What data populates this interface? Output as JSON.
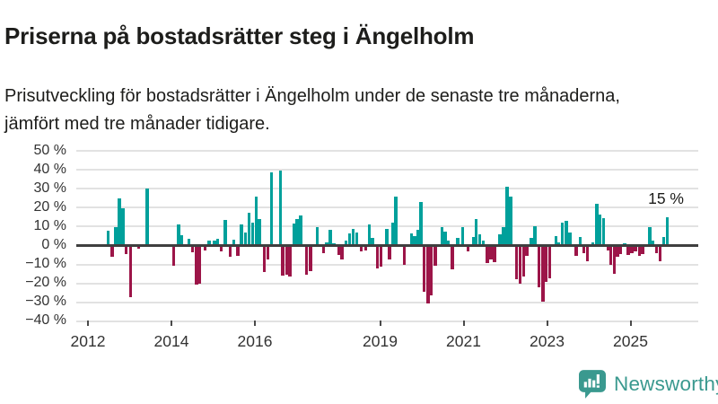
{
  "title": "Priserna på bostadsrätter steg i Ängelholm",
  "subtitle": "Prisutveckling för bostadsrätter i Ängelholm under de senaste tre månaderna, jämfört med tre månader tidigare.",
  "annotation": {
    "label": "15 %"
  },
  "branding": {
    "name": "Newsworthy",
    "icon": "newsworthy-bubble-chart-icon"
  },
  "colors": {
    "positive": "#00a09b",
    "negative": "#9c1548",
    "zero_line": "#3f3f3f",
    "gridline": "#e2e2e2",
    "axis_text": "#333333",
    "text": "#1d1d1b",
    "brand": "#3a998f"
  },
  "chart_data": {
    "type": "bar",
    "title": "Priserna på bostadsrätter steg i Ängelholm",
    "unit": "%",
    "grid": true,
    "ylim": [
      -40,
      50
    ],
    "y_ticks": [
      "50 %",
      "40 %",
      "30 %",
      "20 %",
      "10 %",
      "0 %",
      "−10 %",
      "−20 %",
      "−30 %",
      "−40 %"
    ],
    "y_tick_values": [
      50,
      40,
      30,
      20,
      10,
      0,
      -10,
      -20,
      -30,
      -40
    ],
    "x_ticks": [
      "2012",
      "2014",
      "2016",
      "2019",
      "2021",
      "2023",
      "2025"
    ],
    "x_tick_values": [
      2012,
      2014,
      2016,
      2019,
      2021,
      2023,
      2025
    ],
    "xlim": [
      2011.7,
      2026.6
    ],
    "last_value_label": "15 %",
    "points": [
      [
        2012.49,
        8
      ],
      [
        2012.58,
        -5.5
      ],
      [
        2012.67,
        9.5
      ],
      [
        2012.75,
        25
      ],
      [
        2012.84,
        19.5
      ],
      [
        2012.92,
        -4
      ],
      [
        2013.02,
        -27
      ],
      [
        2013.22,
        -1
      ],
      [
        2013.42,
        30
      ],
      [
        2014.05,
        -10
      ],
      [
        2014.17,
        11
      ],
      [
        2014.25,
        5.5
      ],
      [
        2014.42,
        3.5
      ],
      [
        2014.51,
        -3
      ],
      [
        2014.6,
        -20
      ],
      [
        2014.68,
        -19.5
      ],
      [
        2014.81,
        -2
      ],
      [
        2014.9,
        2.5
      ],
      [
        2015.03,
        2.5
      ],
      [
        2015.11,
        3.5
      ],
      [
        2015.2,
        -2.5
      ],
      [
        2015.29,
        13.5
      ],
      [
        2015.41,
        -5.5
      ],
      [
        2015.5,
        3
      ],
      [
        2015.59,
        -5
      ],
      [
        2015.68,
        11
      ],
      [
        2015.77,
        7
      ],
      [
        2015.86,
        17.5
      ],
      [
        2015.94,
        12
      ],
      [
        2016.03,
        26
      ],
      [
        2016.11,
        14
      ],
      [
        2016.22,
        -13.5
      ],
      [
        2016.31,
        -7
      ],
      [
        2016.4,
        38.5
      ],
      [
        2016.61,
        39.5
      ],
      [
        2016.67,
        -15.5
      ],
      [
        2016.76,
        -15
      ],
      [
        2016.84,
        -16
      ],
      [
        2016.93,
        11.5
      ],
      [
        2017.01,
        14
      ],
      [
        2017.1,
        16
      ],
      [
        2017.24,
        -15
      ],
      [
        2017.33,
        -13
      ],
      [
        2017.49,
        9.5
      ],
      [
        2017.64,
        -3.5
      ],
      [
        2017.72,
        1.5
      ],
      [
        2017.81,
        8.5
      ],
      [
        2017.89,
        1
      ],
      [
        2018.01,
        -4.5
      ],
      [
        2018.09,
        -7
      ],
      [
        2018.18,
        2.5
      ],
      [
        2018.27,
        6.5
      ],
      [
        2018.35,
        9
      ],
      [
        2018.44,
        7
      ],
      [
        2018.55,
        -2.5
      ],
      [
        2018.65,
        -2
      ],
      [
        2018.74,
        11
      ],
      [
        2018.82,
        4
      ],
      [
        2018.94,
        -11.5
      ],
      [
        2019.02,
        -10.5
      ],
      [
        2019.16,
        9
      ],
      [
        2019.23,
        -7
      ],
      [
        2019.3,
        12
      ],
      [
        2019.38,
        26
      ],
      [
        2019.58,
        -9.5
      ],
      [
        2019.75,
        6.5
      ],
      [
        2019.83,
        5
      ],
      [
        2019.9,
        8.5
      ],
      [
        2019.98,
        23
      ],
      [
        2020.06,
        -24
      ],
      [
        2020.15,
        -30
      ],
      [
        2020.23,
        -26
      ],
      [
        2020.32,
        -10
      ],
      [
        2020.48,
        9.5
      ],
      [
        2020.56,
        7.5
      ],
      [
        2020.64,
        2.5
      ],
      [
        2020.73,
        -12
      ],
      [
        2020.86,
        4
      ],
      [
        2020.98,
        9.5
      ],
      [
        2021.11,
        -2.5
      ],
      [
        2021.24,
        4.5
      ],
      [
        2021.3,
        14
      ],
      [
        2021.39,
        6
      ],
      [
        2021.47,
        2.5
      ],
      [
        2021.57,
        -9
      ],
      [
        2021.66,
        -7
      ],
      [
        2021.74,
        -8.5
      ],
      [
        2021.87,
        6
      ],
      [
        2021.96,
        9.5
      ],
      [
        2022.04,
        31
      ],
      [
        2022.13,
        26
      ],
      [
        2022.27,
        -17.5
      ],
      [
        2022.36,
        -19.5
      ],
      [
        2022.44,
        -16
      ],
      [
        2022.52,
        -5
      ],
      [
        2022.62,
        4
      ],
      [
        2022.71,
        10
      ],
      [
        2022.81,
        -21.5
      ],
      [
        2022.9,
        -29
      ],
      [
        2022.98,
        -18.5
      ],
      [
        2023.06,
        -17
      ],
      [
        2023.21,
        5
      ],
      [
        2023.28,
        1.5
      ],
      [
        2023.37,
        12
      ],
      [
        2023.46,
        13
      ],
      [
        2023.55,
        7
      ],
      [
        2023.7,
        -5
      ],
      [
        2023.8,
        4.5
      ],
      [
        2023.88,
        -3.5
      ],
      [
        2023.97,
        -8
      ],
      [
        2024.1,
        1.5
      ],
      [
        2024.19,
        22
      ],
      [
        2024.27,
        16.5
      ],
      [
        2024.35,
        14.5
      ],
      [
        2024.46,
        -2
      ],
      [
        2024.53,
        -9.5
      ],
      [
        2024.61,
        -14.5
      ],
      [
        2024.69,
        -5.5
      ],
      [
        2024.76,
        -4
      ],
      [
        2024.86,
        1
      ],
      [
        2024.95,
        -4.5
      ],
      [
        2025.03,
        -3.5
      ],
      [
        2025.12,
        -2.5
      ],
      [
        2025.21,
        -5
      ],
      [
        2025.29,
        -4
      ],
      [
        2025.46,
        9.5
      ],
      [
        2025.54,
        2.5
      ],
      [
        2025.62,
        -3.5
      ],
      [
        2025.71,
        -8
      ],
      [
        2025.79,
        4.5
      ],
      [
        2025.88,
        15
      ]
    ]
  }
}
